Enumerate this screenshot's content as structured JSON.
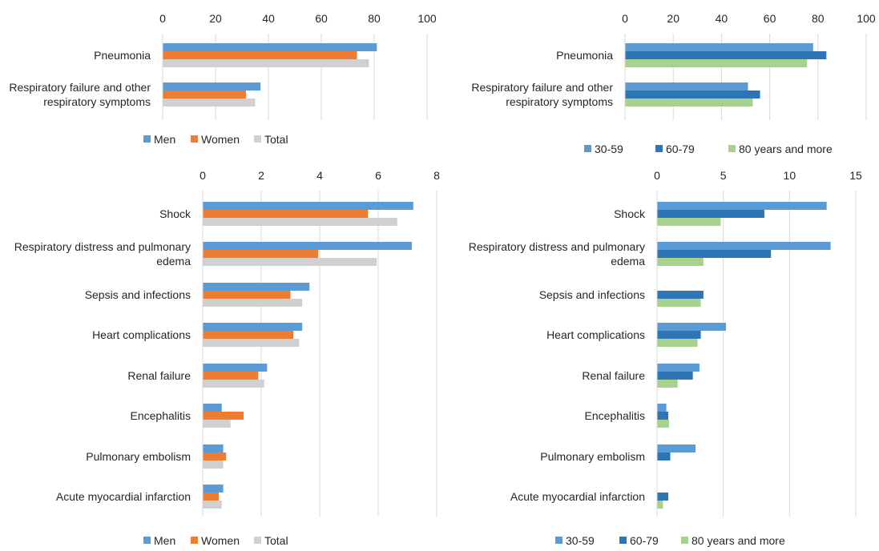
{
  "colors": {
    "men": "#5b9bd5",
    "women": "#ed7d31",
    "total": "#d0d0d0",
    "age_30_59": "#5b9bd5",
    "age_60_79": "#2e75b6",
    "age_80_plus": "#a9d18e",
    "grid": "#d9d9d9"
  },
  "chart_data": [
    {
      "type": "bar",
      "orientation": "horizontal",
      "categories": [
        "Pneumonia",
        "Respiratory failure and other respiratory symptoms"
      ],
      "category_lines": [
        [
          "Pneumonia"
        ],
        [
          "Respiratory failure and other",
          "respiratory symptoms"
        ]
      ],
      "series": [
        {
          "name": "Men",
          "values": [
            81,
            37
          ]
        },
        {
          "name": "Women",
          "values": [
            73.5,
            31.5
          ]
        },
        {
          "name": "Total",
          "values": [
            78,
            35
          ]
        }
      ],
      "xlim": [
        0,
        100
      ],
      "xticks": [
        "0",
        "20",
        "40",
        "60",
        "80",
        "100"
      ],
      "grid": true,
      "legend": "bottom"
    },
    {
      "type": "bar",
      "orientation": "horizontal",
      "categories": [
        "Pneumonia",
        "Respiratory failure and other respiratory symptoms"
      ],
      "category_lines": [
        [
          "Pneumonia"
        ],
        [
          "Respiratory failure and other",
          "respiratory symptoms"
        ]
      ],
      "series": [
        {
          "name": "30-59",
          "values": [
            78,
            51
          ]
        },
        {
          "name": "60-79",
          "values": [
            83.5,
            56
          ]
        },
        {
          "name": "80 years and more",
          "values": [
            75.5,
            53
          ]
        }
      ],
      "xlim": [
        0,
        100
      ],
      "xticks": [
        "0",
        "20",
        "40",
        "60",
        "80",
        "100"
      ],
      "grid": true,
      "legend": "bottom"
    },
    {
      "type": "bar",
      "orientation": "horizontal",
      "categories": [
        "Shock",
        "Respiratory distress and pulmonary edema",
        "Sepsis and infections",
        "Heart complications",
        "Renal failure",
        "Encephalitis",
        "Pulmonary embolism",
        "Acute myocardial infarction"
      ],
      "category_lines": [
        [
          "Shock"
        ],
        [
          "Respiratory distress and pulmonary",
          "edema"
        ],
        [
          "Sepsis and infections"
        ],
        [
          "Heart complications"
        ],
        [
          "Renal failure"
        ],
        [
          "Encephalitis"
        ],
        [
          "Pulmonary embolism"
        ],
        [
          "Acute myocardial infarction"
        ]
      ],
      "series": [
        {
          "name": "Men",
          "values": [
            7.2,
            7.15,
            3.65,
            3.4,
            2.2,
            0.65,
            0.7,
            0.7
          ]
        },
        {
          "name": "Women",
          "values": [
            5.65,
            3.95,
            3.0,
            3.1,
            1.9,
            1.4,
            0.8,
            0.55
          ]
        },
        {
          "name": "Total",
          "values": [
            6.65,
            5.95,
            3.4,
            3.3,
            2.1,
            0.95,
            0.7,
            0.65
          ]
        }
      ],
      "xlim": [
        0,
        8
      ],
      "xticks": [
        "0",
        "2",
        "4",
        "6",
        "8"
      ],
      "grid": true,
      "legend": "bottom"
    },
    {
      "type": "bar",
      "orientation": "horizontal",
      "categories": [
        "Shock",
        "Respiratory distress and pulmonary edema",
        "Sepsis and infections",
        "Heart complications",
        "Renal failure",
        "Encephalitis",
        "Pulmonary embolism",
        "Acute myocardial infarction"
      ],
      "category_lines": [
        [
          "Shock"
        ],
        [
          "Respiratory distress and pulmonary",
          "edema"
        ],
        [
          "Sepsis and infections"
        ],
        [
          "Heart complications"
        ],
        [
          "Renal failure"
        ],
        [
          "Encephalitis"
        ],
        [
          "Pulmonary embolism"
        ],
        [
          "Acute myocardial infarction"
        ]
      ],
      "series": [
        {
          "name": "30-59",
          "values": [
            12.8,
            13.1,
            0,
            5.2,
            3.2,
            0.7,
            2.9,
            0
          ]
        },
        {
          "name": "60-79",
          "values": [
            8.1,
            8.6,
            3.5,
            3.3,
            2.7,
            0.85,
            1.0,
            0.85
          ]
        },
        {
          "name": "80 years and more",
          "values": [
            4.8,
            3.5,
            3.3,
            3.05,
            1.55,
            0.9,
            0,
            0.45
          ]
        }
      ],
      "xlim": [
        0,
        15
      ],
      "xticks": [
        "0",
        "5",
        "10",
        "15"
      ],
      "grid": true,
      "legend": "bottom"
    }
  ]
}
